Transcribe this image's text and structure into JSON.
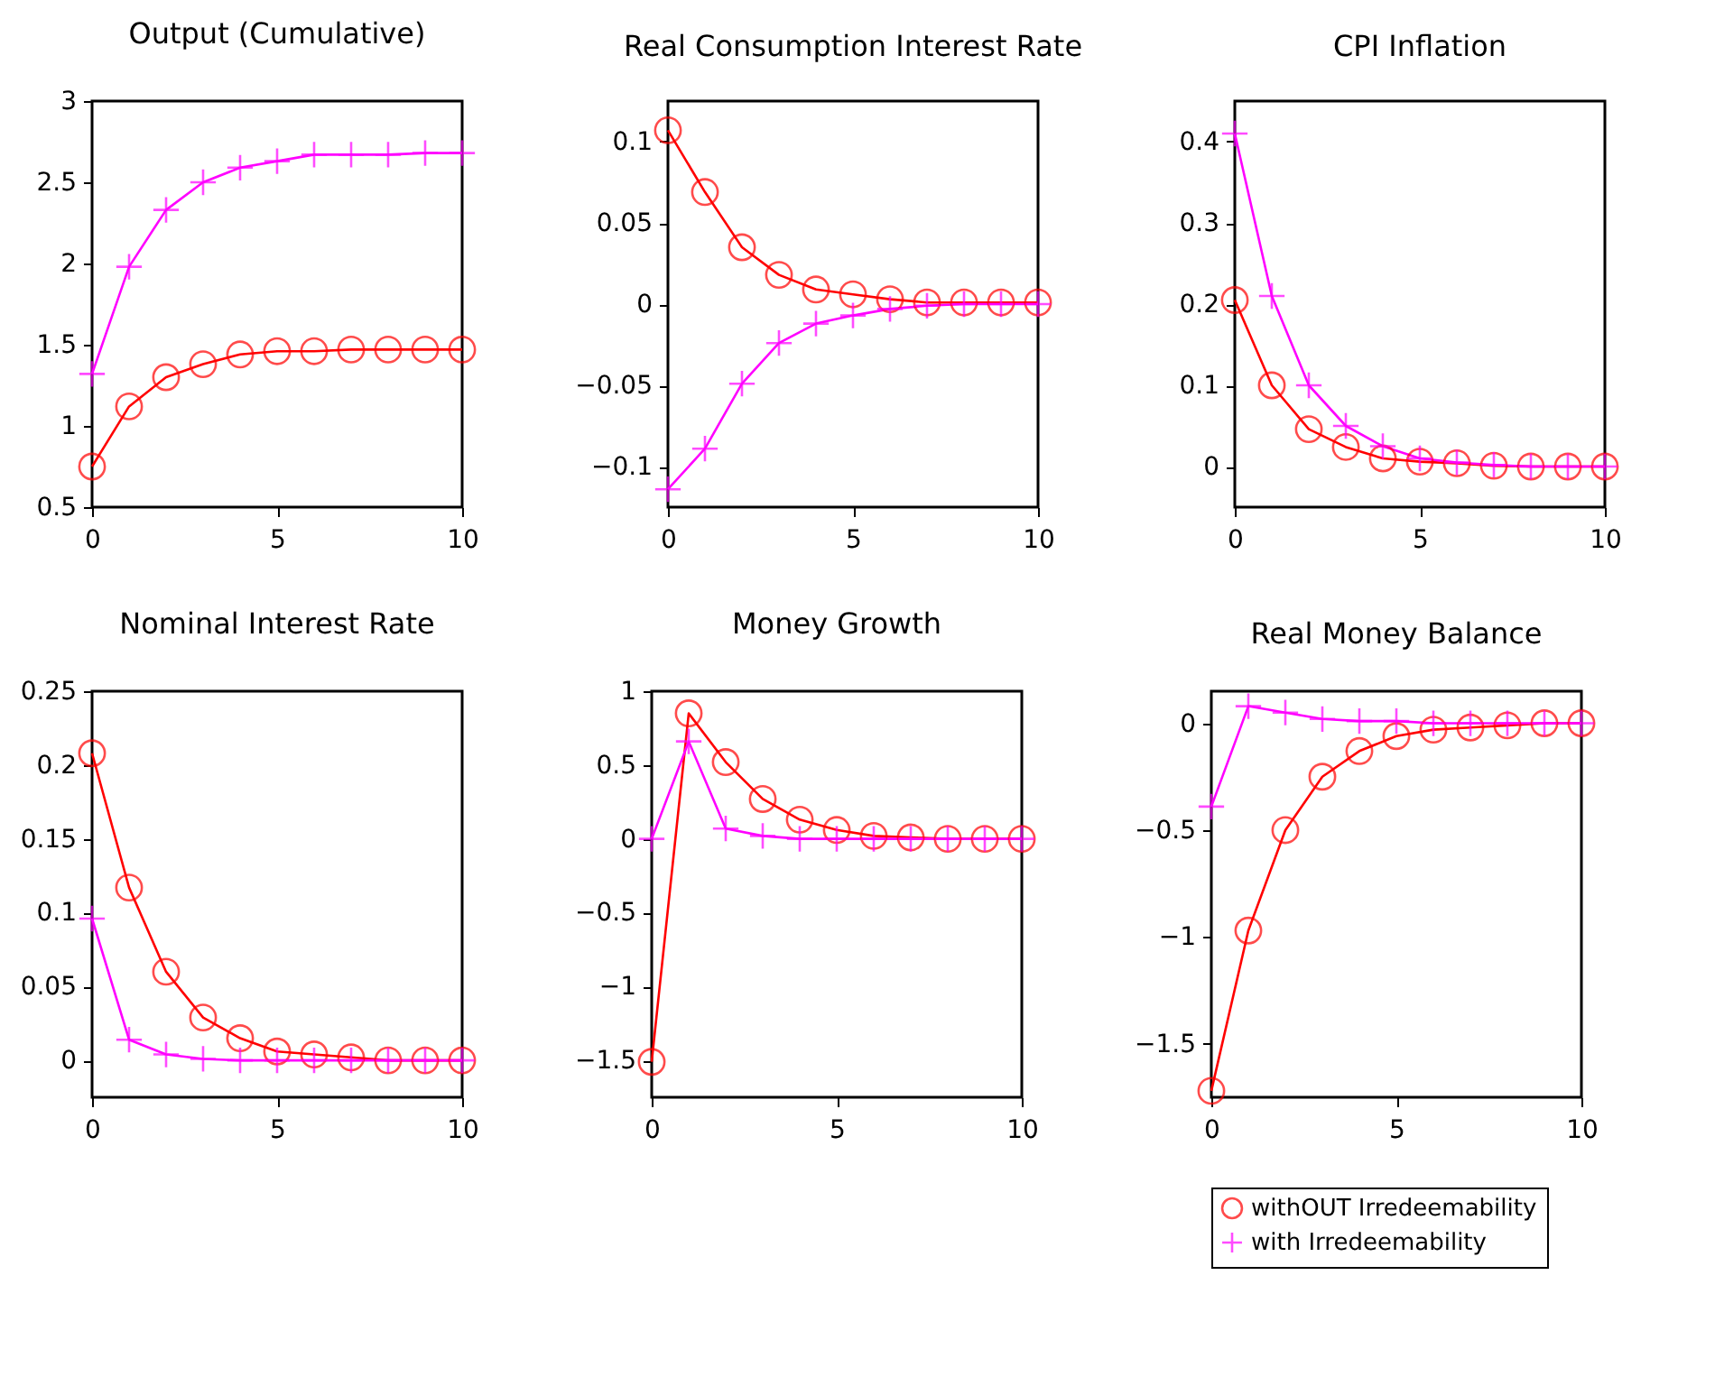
{
  "chart_data": [
    {
      "type": "line",
      "title": "Output (Cumulative)",
      "x": [
        0,
        1,
        2,
        3,
        4,
        5,
        6,
        7,
        8,
        9,
        10
      ],
      "xlim": [
        0,
        10
      ],
      "xticks": [
        0,
        5,
        10
      ],
      "ylim": [
        0.5,
        3
      ],
      "yticks": [
        0.5,
        1,
        1.5,
        2,
        2.5,
        3
      ],
      "grid": false,
      "series": [
        {
          "color": "#ff0000",
          "marker": "circle",
          "values": [
            0.75,
            1.12,
            1.3,
            1.38,
            1.44,
            1.46,
            1.46,
            1.47,
            1.47,
            1.47,
            1.47
          ]
        },
        {
          "color": "#ff00ff",
          "marker": "cross",
          "values": [
            1.32,
            1.98,
            2.33,
            2.5,
            2.59,
            2.63,
            2.67,
            2.67,
            2.67,
            2.68,
            2.68
          ]
        }
      ]
    },
    {
      "type": "line",
      "title": "Real Consumption Interest Rate",
      "x": [
        0,
        1,
        2,
        3,
        4,
        5,
        6,
        7,
        8,
        9,
        10
      ],
      "xlim": [
        0,
        10
      ],
      "xticks": [
        0,
        5,
        10
      ],
      "ylim": [
        -0.125,
        0.125
      ],
      "yticks": [
        -0.1,
        -0.05,
        0,
        0.05,
        0.1
      ],
      "grid": false,
      "series": [
        {
          "color": "#ff0000",
          "marker": "circle",
          "values": [
            0.107,
            0.069,
            0.035,
            0.018,
            0.009,
            0.006,
            0.003,
            0.001,
            0.001,
            0.001,
            0.001
          ]
        },
        {
          "color": "#ff00ff",
          "marker": "cross",
          "values": [
            -0.114,
            -0.089,
            -0.049,
            -0.024,
            -0.012,
            -0.007,
            -0.003,
            -0.001,
            0,
            0,
            0
          ]
        }
      ]
    },
    {
      "type": "line",
      "title": "CPI Inflation",
      "x": [
        0,
        1,
        2,
        3,
        4,
        5,
        6,
        7,
        8,
        9,
        10
      ],
      "xlim": [
        0,
        10
      ],
      "xticks": [
        0,
        5,
        10
      ],
      "ylim": [
        -0.05,
        0.45
      ],
      "yticks": [
        0,
        0.1,
        0.2,
        0.3,
        0.4
      ],
      "grid": false,
      "series": [
        {
          "color": "#ff0000",
          "marker": "circle",
          "values": [
            0.205,
            0.1,
            0.046,
            0.024,
            0.01,
            0.006,
            0.004,
            0.001,
            0,
            0,
            0
          ]
        },
        {
          "color": "#ff00ff",
          "marker": "cross",
          "values": [
            0.41,
            0.21,
            0.1,
            0.05,
            0.025,
            0.01,
            0.005,
            0.002,
            0,
            0,
            0
          ]
        }
      ]
    },
    {
      "type": "line",
      "title": "Nominal Interest Rate",
      "x": [
        0,
        1,
        2,
        3,
        4,
        5,
        6,
        7,
        8,
        9,
        10
      ],
      "xlim": [
        0,
        10
      ],
      "xticks": [
        0,
        5,
        10
      ],
      "ylim": [
        -0.025,
        0.25
      ],
      "yticks": [
        0,
        0.05,
        0.1,
        0.15,
        0.2,
        0.25
      ],
      "grid": false,
      "series": [
        {
          "color": "#ff0000",
          "marker": "circle",
          "values": [
            0.208,
            0.117,
            0.06,
            0.029,
            0.015,
            0.006,
            0.004,
            0.002,
            0,
            0,
            0
          ]
        },
        {
          "color": "#ff00ff",
          "marker": "cross",
          "values": [
            0.096,
            0.014,
            0.004,
            0.001,
            0,
            0,
            0,
            0,
            0,
            0,
            0
          ]
        }
      ]
    },
    {
      "type": "line",
      "title": "Money Growth",
      "x": [
        0,
        1,
        2,
        3,
        4,
        5,
        6,
        7,
        8,
        9,
        10
      ],
      "xlim": [
        0,
        10
      ],
      "xticks": [
        0,
        5,
        10
      ],
      "ylim": [
        -1.75,
        1
      ],
      "yticks": [
        -1.5,
        -1,
        -0.5,
        0,
        0.5,
        1
      ],
      "grid": false,
      "series": [
        {
          "color": "#ff0000",
          "marker": "circle",
          "values": [
            -1.51,
            0.85,
            0.52,
            0.27,
            0.13,
            0.06,
            0.02,
            0.01,
            0,
            0,
            0
          ]
        },
        {
          "color": "#ff00ff",
          "marker": "cross",
          "values": [
            0,
            0.66,
            0.07,
            0.02,
            0,
            0,
            0,
            0,
            0,
            0,
            0
          ]
        }
      ]
    },
    {
      "type": "line",
      "title": "Real Money Balance",
      "x": [
        0,
        1,
        2,
        3,
        4,
        5,
        6,
        7,
        8,
        9,
        10
      ],
      "xlim": [
        0,
        10
      ],
      "xticks": [
        0,
        5,
        10
      ],
      "ylim": [
        -1.75,
        0.15
      ],
      "yticks": [
        -1.5,
        -1,
        -0.5,
        0
      ],
      "grid": false,
      "legend": "bottom",
      "series": [
        {
          "name": "withOUT Irredeemability",
          "color": "#ff0000",
          "marker": "circle",
          "values": [
            -1.72,
            -0.97,
            -0.5,
            -0.25,
            -0.13,
            -0.06,
            -0.03,
            -0.02,
            -0.01,
            0,
            0
          ]
        },
        {
          "name": "with Irredeemability",
          "color": "#ff00ff",
          "marker": "cross",
          "values": [
            -0.39,
            0.08,
            0.05,
            0.02,
            0.01,
            0.01,
            0,
            0,
            0,
            0,
            0
          ]
        }
      ]
    }
  ]
}
